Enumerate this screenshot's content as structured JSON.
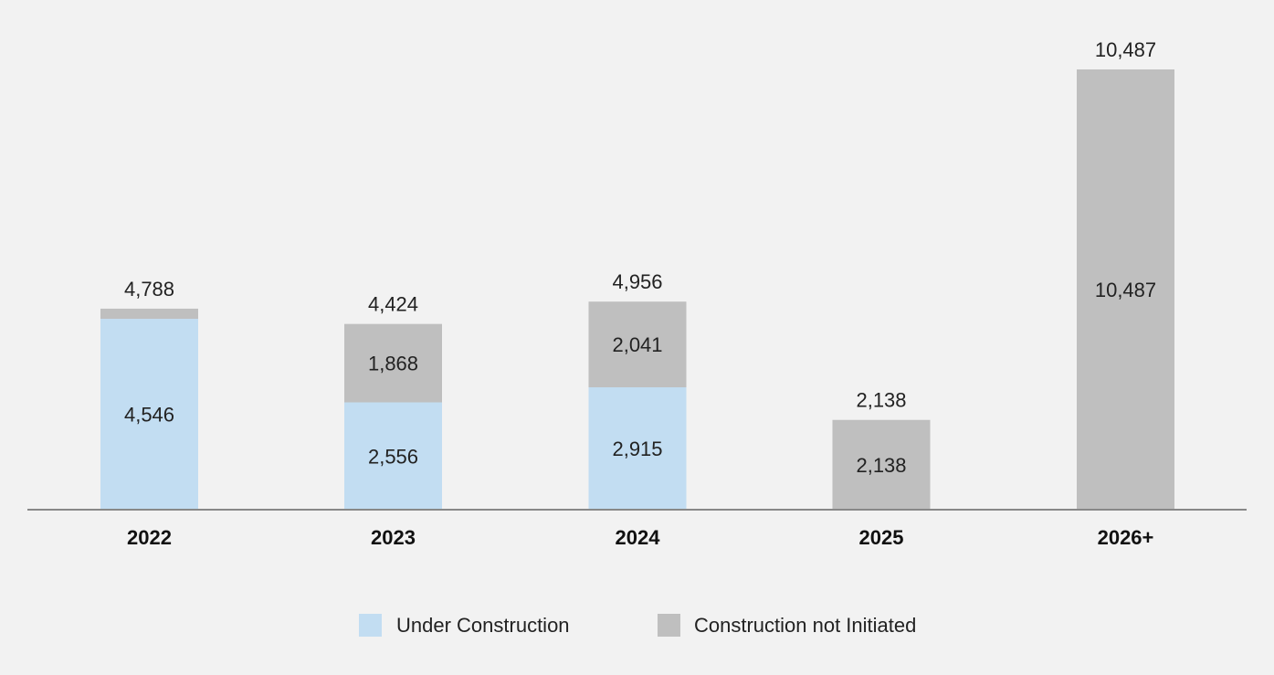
{
  "chart_data": {
    "type": "bar",
    "stacked": true,
    "categories": [
      "2022",
      "2023",
      "2024",
      "2025",
      "2026+"
    ],
    "series": [
      {
        "name": "Under Construction",
        "color": "#c2ddf2",
        "values": [
          4546,
          2556,
          2915,
          0,
          0
        ],
        "labels": [
          "4,546",
          "2,556",
          "2,915",
          "",
          ""
        ]
      },
      {
        "name": "Construction not Initiated",
        "color": "#bfbfbf",
        "values": [
          242,
          1868,
          2041,
          2138,
          10487
        ],
        "labels": [
          "",
          "1,868",
          "2,041",
          "2,138",
          "10,487"
        ]
      }
    ],
    "totals": [
      4788,
      4424,
      4956,
      2138,
      10487
    ],
    "total_labels": [
      "4,788",
      "4,424",
      "4,956",
      "2,138",
      "10,487"
    ],
    "ylim": [
      0,
      10487
    ],
    "axis_color": "#888888",
    "grid": false,
    "legend_position": "bottom-center"
  }
}
